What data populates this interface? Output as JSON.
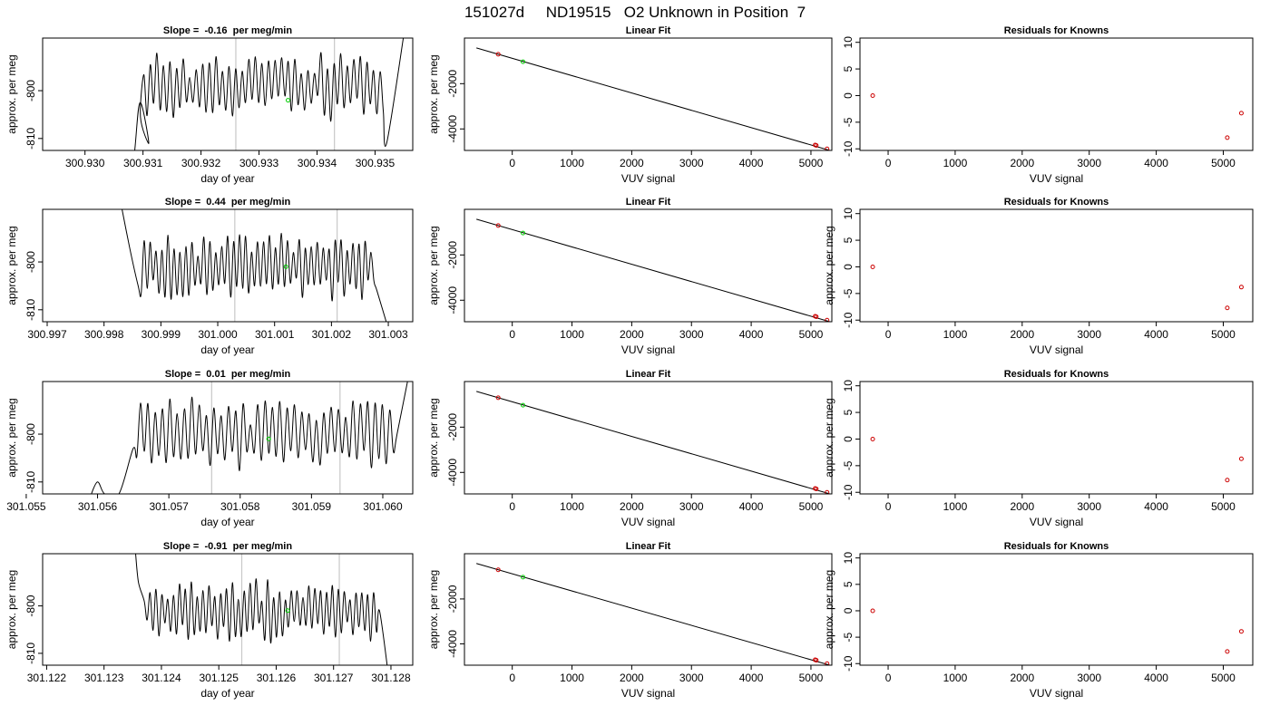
{
  "figure_title": "151027d     ND19515   O2 Unknown in Position  7",
  "colors": {
    "axes": "#000000",
    "time_trace": "#000000",
    "vertical_markers": "#c8c8c8",
    "unknown_point": "#00cc00",
    "known_points": "#cc0000",
    "fit_line": "#000000"
  },
  "chart_data": [
    {
      "type": "line",
      "row": 1,
      "col": 1,
      "title": "Slope =  -0.16  per meg/min",
      "xlabel": "day of year",
      "ylabel": "approx. per meg",
      "xlim": [
        300.92927,
        300.93565
      ],
      "ylim": [
        -812.5,
        -789.0
      ],
      "xticks": [
        "300.930",
        "300.931",
        "300.932",
        "300.933",
        "300.934",
        "300.935"
      ],
      "yticks": [
        "-800",
        "-810"
      ],
      "vlines": [
        300.9326,
        300.9343
      ],
      "trace": {
        "start": 300.9309,
        "end": 300.9352,
        "oscillations": 38,
        "amplitude": 5.5,
        "mean": -799.0,
        "seed": 11,
        "head": [
          [
            300.9307,
            -830
          ],
          [
            300.93085,
            -813.5
          ],
          [
            300.93095,
            -802.5
          ],
          [
            300.9311,
            -811.0
          ]
        ],
        "tail": [
          [
            300.9352,
            -811.0
          ],
          [
            300.9355,
            -788.0
          ]
        ]
      },
      "unknown_point": {
        "x": 300.9335,
        "y": -802.0
      }
    },
    {
      "type": "scatter",
      "row": 1,
      "col": 2,
      "title": "Linear Fit",
      "xlabel": "VUV signal",
      "ylabel": "approx. per meg",
      "xlim": [
        -800,
        5350
      ],
      "ylim": [
        -4950,
        15
      ],
      "xticks": [
        0,
        1000,
        2000,
        3000,
        4000,
        5000
      ],
      "yticks": [
        -2000,
        -4000
      ],
      "fit_line": {
        "x": [
          -600,
          5330
        ],
        "y": [
          -420,
          -4960
        ]
      },
      "known_points": [
        {
          "x": -235,
          "y": -700
        },
        {
          "x": 5070,
          "y": -4710
        },
        {
          "x": 5090,
          "y": -4730
        },
        {
          "x": 5270,
          "y": -4880
        }
      ],
      "unknown_points": [
        {
          "x": 180,
          "y": -1030
        }
      ]
    },
    {
      "type": "scatter",
      "row": 1,
      "col": 3,
      "title": "Residuals for Knowns",
      "xlabel": "VUV signal",
      "ylabel": "",
      "xlim": [
        -420,
        5440
      ],
      "ylim": [
        -10.3,
        10.8
      ],
      "xticks": [
        0,
        1000,
        2000,
        3000,
        4000,
        5000
      ],
      "yticks": [
        10,
        5,
        0,
        -5,
        -10
      ],
      "points": [
        {
          "x": -230,
          "y": 0.0
        },
        {
          "x": 5060,
          "y": -7.9
        },
        {
          "x": 5270,
          "y": -3.3
        }
      ]
    },
    {
      "type": "line",
      "row": 2,
      "col": 1,
      "title": "Slope =  0.44  per meg/min",
      "xlabel": "day of year",
      "ylabel": "approx. per meg",
      "xlim": [
        300.99692,
        301.00343
      ],
      "ylim": [
        -812.5,
        -789.0
      ],
      "xticks": [
        "300.997",
        "300.998",
        "300.999",
        "301.000",
        "301.001",
        "301.002",
        "301.003"
      ],
      "yticks": [
        "-800",
        "-810"
      ],
      "vlines": [
        301.0003,
        301.0021
      ],
      "trace": {
        "start": 300.9986,
        "end": 301.0028,
        "oscillations": 40,
        "amplitude": 5.5,
        "mean": -801.0,
        "seed": 23,
        "head": [
          [
            300.9983,
            -788.0
          ],
          [
            300.99845,
            -797.0
          ],
          [
            300.9986,
            -805.0
          ]
        ],
        "tail": [
          [
            301.0028,
            -806.0
          ],
          [
            301.003,
            -814.0
          ]
        ]
      },
      "unknown_point": {
        "x": 301.0012,
        "y": -801.0
      }
    },
    {
      "type": "scatter",
      "row": 2,
      "col": 2,
      "title": "Linear Fit",
      "xlabel": "VUV signal",
      "ylabel": "approx. per meg",
      "xlim": [
        -800,
        5350
      ],
      "ylim": [
        -4950,
        15
      ],
      "xticks": [
        0,
        1000,
        2000,
        3000,
        4000,
        5000
      ],
      "yticks": [
        -2000,
        -4000
      ],
      "fit_line": {
        "x": [
          -600,
          5330
        ],
        "y": [
          -420,
          -4960
        ]
      },
      "known_points": [
        {
          "x": -235,
          "y": -700
        },
        {
          "x": 5070,
          "y": -4710
        },
        {
          "x": 5090,
          "y": -4730
        },
        {
          "x": 5270,
          "y": -4880
        }
      ],
      "unknown_points": [
        {
          "x": 180,
          "y": -1030
        }
      ]
    },
    {
      "type": "scatter",
      "row": 2,
      "col": 3,
      "title": "Residuals for Knowns",
      "xlabel": "VUV signal",
      "ylabel": "approx. per meg",
      "xlim": [
        -420,
        5440
      ],
      "ylim": [
        -10.3,
        10.8
      ],
      "xticks": [
        0,
        1000,
        2000,
        3000,
        4000,
        5000
      ],
      "yticks": [
        10,
        5,
        0,
        -5,
        -10
      ],
      "points": [
        {
          "x": -230,
          "y": 0.0
        },
        {
          "x": 5060,
          "y": -7.7
        },
        {
          "x": 5270,
          "y": -3.8
        }
      ]
    },
    {
      "type": "line",
      "row": 3,
      "col": 1,
      "title": "Slope =  0.01  per meg/min",
      "xlabel": "day of year",
      "ylabel": "approx. per meg",
      "xlim": [
        301.05523,
        301.06042
      ],
      "ylim": [
        -812.5,
        -789.0
      ],
      "xticks": [
        "301.055",
        "301.056",
        "301.057",
        "301.058",
        "301.059",
        "301.060"
      ],
      "yticks": [
        "-800",
        "-810"
      ],
      "vlines": [
        301.0576,
        301.0594
      ],
      "trace": {
        "start": 301.0565,
        "end": 301.0602,
        "oscillations": 36,
        "amplitude": 6.0,
        "mean": -800.0,
        "seed": 37,
        "head": [
          [
            301.0559,
            -813.0
          ],
          [
            301.056,
            -810.0
          ],
          [
            301.0561,
            -812.5
          ],
          [
            301.0563,
            -812.5
          ],
          [
            301.0565,
            -803.0
          ]
        ],
        "tail": [
          [
            301.0602,
            -800.0
          ],
          [
            301.0604,
            -785.0
          ]
        ]
      },
      "unknown_point": {
        "x": 301.0584,
        "y": -801.0
      }
    },
    {
      "type": "scatter",
      "row": 3,
      "col": 2,
      "title": "Linear Fit",
      "xlabel": "VUV signal",
      "ylabel": "approx. per meg",
      "xlim": [
        -800,
        5350
      ],
      "ylim": [
        -4950,
        15
      ],
      "xticks": [
        0,
        1000,
        2000,
        3000,
        4000,
        5000
      ],
      "yticks": [
        -2000,
        -4000
      ],
      "fit_line": {
        "x": [
          -600,
          5330
        ],
        "y": [
          -420,
          -4960
        ]
      },
      "known_points": [
        {
          "x": -235,
          "y": -700
        },
        {
          "x": 5070,
          "y": -4710
        },
        {
          "x": 5090,
          "y": -4730
        },
        {
          "x": 5270,
          "y": -4880
        }
      ],
      "unknown_points": [
        {
          "x": 180,
          "y": -1030
        }
      ]
    },
    {
      "type": "scatter",
      "row": 3,
      "col": 3,
      "title": "Residuals for Knowns",
      "xlabel": "VUV signal",
      "ylabel": "approx. per meg",
      "xlim": [
        -420,
        5440
      ],
      "ylim": [
        -10.3,
        10.8
      ],
      "xticks": [
        0,
        1000,
        2000,
        3000,
        4000,
        5000
      ],
      "yticks": [
        10,
        5,
        0,
        -5,
        -10
      ],
      "points": [
        {
          "x": -230,
          "y": 0.0
        },
        {
          "x": 5060,
          "y": -7.7
        },
        {
          "x": 5270,
          "y": -3.7
        }
      ]
    },
    {
      "type": "line",
      "row": 4,
      "col": 1,
      "title": "Slope =  -0.91  per meg/min",
      "xlabel": "day of year",
      "ylabel": "approx. per meg",
      "xlim": [
        301.12193,
        301.12838
      ],
      "ylim": [
        -812.5,
        -789.0
      ],
      "xticks": [
        "301.122",
        "301.123",
        "301.124",
        "301.125",
        "301.126",
        "301.127",
        "301.128"
      ],
      "yticks": [
        "-800",
        "-810"
      ],
      "vlines": [
        301.1254,
        301.1271
      ],
      "trace": {
        "start": 301.1237,
        "end": 301.1278,
        "oscillations": 40,
        "amplitude": 5.2,
        "mean": -801.0,
        "seed": 53,
        "head": [
          [
            301.12355,
            -789.0
          ],
          [
            301.1236,
            -795.0
          ],
          [
            301.1237,
            -799.0
          ]
        ],
        "tail": [
          [
            301.1278,
            -801.0
          ],
          [
            301.12795,
            -814.0
          ]
        ]
      },
      "unknown_point": {
        "x": 301.1262,
        "y": -801.0
      }
    },
    {
      "type": "scatter",
      "row": 4,
      "col": 2,
      "title": "Linear Fit",
      "xlabel": "VUV signal",
      "ylabel": "approx. per meg",
      "xlim": [
        -800,
        5350
      ],
      "ylim": [
        -4950,
        15
      ],
      "xticks": [
        0,
        1000,
        2000,
        3000,
        4000,
        5000
      ],
      "yticks": [
        -2000,
        -4000
      ],
      "fit_line": {
        "x": [
          -600,
          5330
        ],
        "y": [
          -420,
          -4960
        ]
      },
      "known_points": [
        {
          "x": -235,
          "y": -700
        },
        {
          "x": 5070,
          "y": -4710
        },
        {
          "x": 5090,
          "y": -4730
        },
        {
          "x": 5270,
          "y": -4880
        }
      ],
      "unknown_points": [
        {
          "x": 180,
          "y": -1030
        }
      ]
    },
    {
      "type": "scatter",
      "row": 4,
      "col": 3,
      "title": "Residuals for Knowns",
      "xlabel": "VUV signal",
      "ylabel": "approx. per meg",
      "xlim": [
        -420,
        5440
      ],
      "ylim": [
        -10.3,
        10.8
      ],
      "xticks": [
        0,
        1000,
        2000,
        3000,
        4000,
        5000
      ],
      "yticks": [
        10,
        5,
        0,
        -5,
        -10
      ],
      "points": [
        {
          "x": -230,
          "y": 0.0
        },
        {
          "x": 5060,
          "y": -7.7
        },
        {
          "x": 5270,
          "y": -3.9
        }
      ]
    }
  ]
}
